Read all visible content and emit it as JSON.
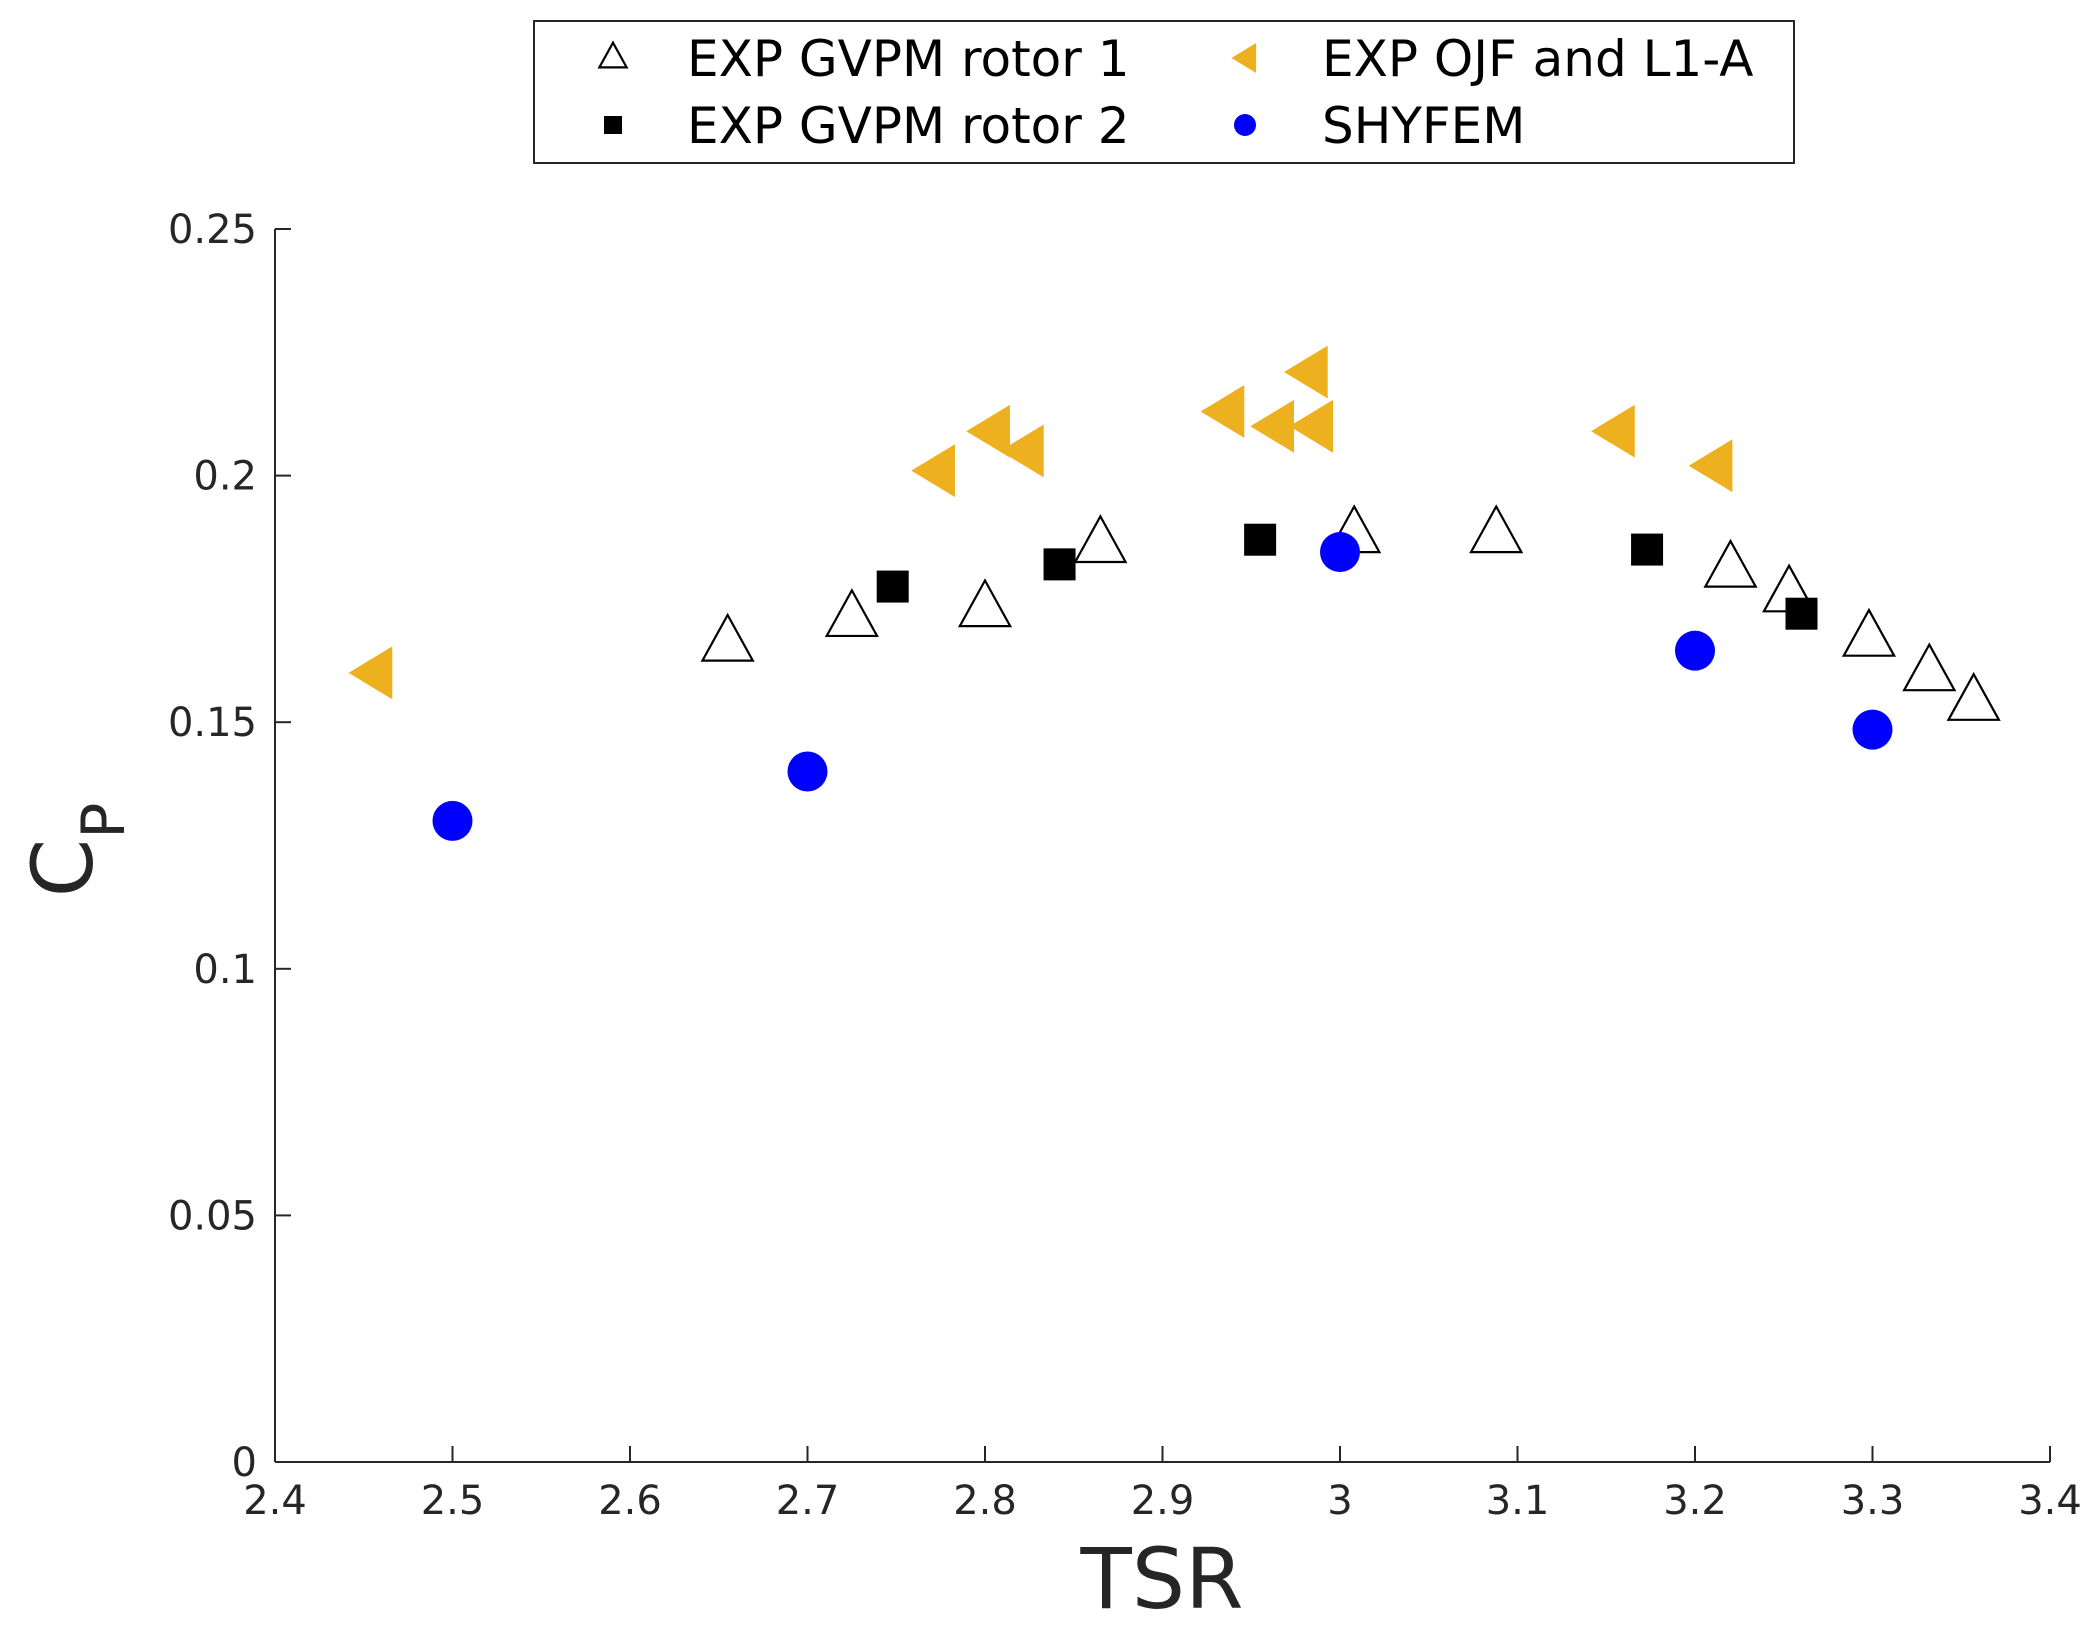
{
  "chart_data": {
    "type": "scatter",
    "title": "",
    "xlabel": "TSR",
    "ylabel": "C",
    "ylabel_subscript": "P",
    "xlim": [
      2.4,
      3.4
    ],
    "ylim": [
      0,
      0.25
    ],
    "x_ticks": [
      2.4,
      2.5,
      2.6,
      2.7,
      2.8,
      2.9,
      3.0,
      3.1,
      3.2,
      3.3,
      3.4
    ],
    "x_tick_labels": [
      "2.4",
      "2.5",
      "2.6",
      "2.7",
      "2.8",
      "2.9",
      "3",
      "3.1",
      "3.2",
      "3.3",
      "3.4"
    ],
    "y_ticks": [
      0,
      0.05,
      0.1,
      0.15,
      0.2,
      0.25
    ],
    "y_tick_labels": [
      "0",
      "0.05",
      "0.1",
      "0.15",
      "0.2",
      "0.25"
    ],
    "grid": false,
    "legend_position": "top-center, outside plot",
    "series": [
      {
        "name": "EXP GVPM rotor 1",
        "marker": "triangle-up-open",
        "color": "#000000",
        "points": [
          {
            "x": 2.655,
            "y": 0.166
          },
          {
            "x": 2.725,
            "y": 0.171
          },
          {
            "x": 2.8,
            "y": 0.173
          },
          {
            "x": 2.865,
            "y": 0.186
          },
          {
            "x": 3.008,
            "y": 0.188
          },
          {
            "x": 3.088,
            "y": 0.188
          },
          {
            "x": 3.22,
            "y": 0.181
          },
          {
            "x": 3.253,
            "y": 0.176
          },
          {
            "x": 3.298,
            "y": 0.167
          },
          {
            "x": 3.332,
            "y": 0.16
          },
          {
            "x": 3.357,
            "y": 0.154
          }
        ]
      },
      {
        "name": "EXP GVPM rotor 2",
        "marker": "square-filled",
        "color": "#000000",
        "points": [
          {
            "x": 2.748,
            "y": 0.1775
          },
          {
            "x": 2.842,
            "y": 0.182
          },
          {
            "x": 2.955,
            "y": 0.187
          },
          {
            "x": 3.173,
            "y": 0.185
          },
          {
            "x": 3.26,
            "y": 0.172
          }
        ]
      },
      {
        "name": "EXP OJF and L1-A",
        "marker": "triangle-left-filled",
        "color": "#EDB120",
        "points": [
          {
            "x": 2.455,
            "y": 0.16
          },
          {
            "x": 2.772,
            "y": 0.201
          },
          {
            "x": 2.803,
            "y": 0.209
          },
          {
            "x": 2.822,
            "y": 0.205
          },
          {
            "x": 2.935,
            "y": 0.213
          },
          {
            "x": 2.963,
            "y": 0.21
          },
          {
            "x": 2.982,
            "y": 0.221
          },
          {
            "x": 2.985,
            "y": 0.21
          },
          {
            "x": 3.155,
            "y": 0.209
          },
          {
            "x": 3.21,
            "y": 0.202
          }
        ]
      },
      {
        "name": "SHYFEM",
        "marker": "circle-filled",
        "color": "#0000FF",
        "points": [
          {
            "x": 2.5,
            "y": 0.13
          },
          {
            "x": 2.7,
            "y": 0.14
          },
          {
            "x": 3.0,
            "y": 0.1845
          },
          {
            "x": 3.2,
            "y": 0.1645
          },
          {
            "x": 3.3,
            "y": 0.1485
          }
        ]
      }
    ]
  }
}
